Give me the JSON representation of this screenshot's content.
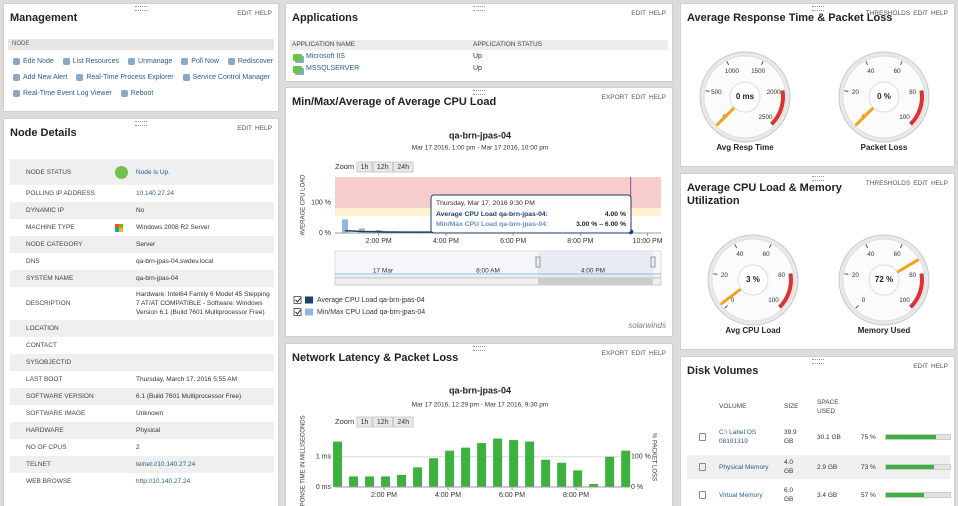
{
  "management": {
    "title": "Management",
    "actions": [
      "EDIT",
      "HELP"
    ],
    "section": "NODE",
    "links": [
      [
        "Edit Node",
        "List Resources",
        "Unmanage",
        "Poll Now",
        "Rediscover"
      ],
      [
        "Add New Alert",
        "Real-Time Process Explorer",
        "Service Control Manager"
      ],
      [
        "Real-Time Event Log Viewer",
        "Reboot"
      ]
    ]
  },
  "node_details": {
    "title": "Node Details",
    "actions": [
      "EDIT",
      "HELP"
    ],
    "rows": [
      {
        "label": "NODE STATUS",
        "value": "Node is Up.",
        "link": true,
        "icon": "status"
      },
      {
        "label": "POLLING IP ADDRESS",
        "value": "10.140.27.24",
        "link": true
      },
      {
        "label": "DYNAMIC IP",
        "value": "No"
      },
      {
        "label": "MACHINE TYPE",
        "value": "Windows 2008 R2 Server",
        "icon": "windows"
      },
      {
        "label": "NODE CATEGORY",
        "value": "Server"
      },
      {
        "label": "DNS",
        "value": "qa-brn-jpas-04.swdev.local"
      },
      {
        "label": "SYSTEM NAME",
        "value": "qa-brn-jpas-04"
      },
      {
        "label": "DESCRIPTION",
        "value": "Hardware: Intel64 Family 6 Model 45 Stepping 7 AT/AT COMPATIBLE - Software: Windows Version 6.1 (Build 7601 Multiprocessor Free)"
      },
      {
        "label": "LOCATION"
      },
      {
        "label": "CONTACT"
      },
      {
        "label": "SYSOBJECTID"
      },
      {
        "label": "LAST BOOT",
        "value": "Thursday, March 17, 2016 5:55 AM"
      },
      {
        "label": "SOFTWARE VERSION",
        "value": "6.1 (Build 7601 Multiprocessor Free)"
      },
      {
        "label": "SOFTWARE IMAGE",
        "value": "Unknown"
      },
      {
        "label": "HARDWARE",
        "value": "Physical"
      },
      {
        "label": "NO OF CPUS",
        "value": "2"
      },
      {
        "label": "TELNET",
        "value": "telnet://10.140.27.24",
        "link": true
      },
      {
        "label": "WEB BROWSE",
        "value": "http://10.140.27.24",
        "link": true
      }
    ]
  },
  "applications": {
    "title": "Applications",
    "actions": [
      "EDIT",
      "HELP"
    ],
    "columns": [
      "APPLICATION NAME",
      "APPLICATION STATUS"
    ],
    "rows": [
      [
        "Microsoft IIS",
        "Up"
      ],
      [
        "MSSQLSERVER",
        "Up"
      ]
    ]
  },
  "cpu_panel": {
    "title": "Min/Max/Average of Average CPU Load",
    "actions": [
      "EXPORT",
      "EDIT",
      "HELP"
    ],
    "chart_data": {
      "type": "line",
      "title": "qa-brn-jpas-04",
      "subtitle": "Mar 17 2016, 1:00 pm - Mar 17 2016, 10:00 pm",
      "zoom_label": "Zoom",
      "zoom": [
        "1h",
        "12h",
        "24h"
      ],
      "y_label": "AVERAGE CPU LOAD",
      "x": [
        13,
        13.5,
        14,
        14.5,
        15,
        15.5,
        16,
        16.5,
        17,
        17.5,
        18,
        18.5,
        19,
        19.5,
        20,
        20.5,
        21,
        21.5
      ],
      "series": [
        {
          "name": "Average CPU Load qa-brn-jpas-04",
          "color": "#1f3f6e",
          "values": [
            8,
            5,
            4,
            3,
            3,
            3,
            2,
            3,
            3,
            2,
            3,
            3,
            2,
            3,
            3,
            3,
            3,
            4
          ]
        },
        {
          "name": "Min/Max CPU Load qa-brn-jpas-04",
          "color": "#8fb8e0",
          "min": [
            2,
            2,
            2,
            1,
            1,
            1,
            1,
            1,
            1,
            1,
            1,
            1,
            1,
            1,
            1,
            2,
            2,
            3
          ],
          "max": [
            45,
            15,
            10,
            6,
            5,
            5,
            4,
            5,
            5,
            4,
            5,
            5,
            4,
            5,
            5,
            5,
            5,
            6
          ]
        }
      ],
      "xlim": [
        12.7,
        22.4
      ],
      "xticks": [
        {
          "value": 14,
          "label": "2:00 PM"
        },
        {
          "value": 16,
          "label": "4:00 PM"
        },
        {
          "value": 18,
          "label": "6:00 PM"
        },
        {
          "value": 20,
          "label": "8:00 PM"
        },
        {
          "value": 22,
          "label": "10:00 PM"
        }
      ],
      "ylim": [
        0,
        185
      ],
      "yticks": [
        {
          "value": 0,
          "label": "0 %"
        },
        {
          "value": 100,
          "label": "100 %"
        }
      ],
      "tooltip": {
        "title": "Thursday, Mar 17, 2016 9:30 PM",
        "lines": [
          [
            "Average CPU Load qa-brn-jpas-04:",
            "4.00 %"
          ],
          [
            "Min/Max CPU Load qa-brn-jpas-04:",
            "3.00 % – 6.00 %"
          ]
        ]
      },
      "navigator_labels": [
        "17 Mar",
        "8:00 AM",
        "4:00 PM"
      ],
      "brand": "solarwinds"
    }
  },
  "network_panel": {
    "title": "Network Latency & Packet Loss",
    "actions": [
      "EXPORT",
      "EDIT",
      "HELP"
    ],
    "chart_data": {
      "type": "bar",
      "title": "qa-brn-jpas-04",
      "subtitle": "Mar 17 2016, 12:29 pm - Mar 17 2016, 9:30 pm",
      "zoom_label": "Zoom",
      "zoom": [
        "1h",
        "12h",
        "24h"
      ],
      "y_label": "RESPONSE TIME IN MILLISECONDS",
      "y2_label": "% PACKET LOSS",
      "x": [
        12.55,
        13.05,
        13.55,
        14.05,
        14.55,
        15.05,
        15.55,
        16.05,
        16.55,
        17.05,
        17.55,
        18.05,
        18.55,
        19.05,
        19.55,
        20.05,
        20.55,
        21.05,
        21.55
      ],
      "values": [
        1.5,
        0.35,
        0.35,
        0.35,
        0.4,
        0.65,
        0.95,
        1.2,
        1.3,
        1.45,
        1.6,
        1.55,
        1.5,
        0.9,
        0.8,
        0.55,
        0.1,
        1.0,
        1.2
      ],
      "color": "#3db13d",
      "xlim": [
        12.47,
        21.56
      ],
      "xticks": [
        {
          "value": 14,
          "label": "2:00 PM"
        },
        {
          "value": 16,
          "label": "4:00 PM"
        },
        {
          "value": 18,
          "label": "6:00 PM"
        },
        {
          "value": 20,
          "label": "8:00 PM"
        }
      ],
      "ylim": [
        0,
        1.85
      ],
      "yticks": [
        {
          "value": 0,
          "label": "0 ms"
        },
        {
          "value": 1,
          "label": "1 ms"
        }
      ],
      "y2lim": [
        0,
        185
      ],
      "y2ticks": [
        {
          "value": 0,
          "label": "0 %"
        },
        {
          "value": 100,
          "label": "100 %"
        }
      ]
    }
  },
  "response_panel": {
    "title": "Average Response Time & Packet Loss",
    "actions": [
      "THRESHOLDS",
      "EDIT",
      "HELP"
    ],
    "gauges": [
      {
        "label": "Avg Resp Time",
        "value": 0,
        "value_label": "0 ms",
        "ticks": [
          0,
          500,
          1000,
          1500,
          2000,
          2500
        ]
      },
      {
        "label": "Packet Loss",
        "value": 0,
        "value_label": "0 %",
        "ticks": [
          0,
          20,
          40,
          60,
          80,
          100
        ]
      }
    ]
  },
  "cpu_memory_panel": {
    "title": "Average CPU Load & Memory Utilization",
    "actions": [
      "THRESHOLDS",
      "EDIT",
      "HELP"
    ],
    "gauges": [
      {
        "label": "Avg CPU Load",
        "value": 3,
        "value_label": "3 %",
        "ticks": [
          0,
          20,
          40,
          60,
          80,
          100
        ]
      },
      {
        "label": "Memory Used",
        "value": 72,
        "value_label": "72 %",
        "ticks": [
          0,
          20,
          40,
          60,
          80,
          100
        ]
      }
    ]
  },
  "disk_panel": {
    "title": "Disk Volumes",
    "actions": [
      "EDIT",
      "HELP"
    ],
    "columns": [
      "VOLUME",
      "SIZE",
      "SPACE USED"
    ],
    "rows": [
      {
        "volume": "C:\\ Label:OS 08191319",
        "size": "39.9 GB",
        "used": "30.1 GB",
        "percent": {
          "value": 75,
          "label": "75 %"
        }
      },
      {
        "volume": "Physical Memory",
        "size": "4.0 GB",
        "used": "2.9 GB",
        "percent": {
          "value": 73,
          "label": "73 %"
        }
      },
      {
        "volume": "Virtual Memory",
        "size": "6.0 GB",
        "used": "3.4 GB",
        "percent": {
          "value": 57,
          "label": "57 %"
        }
      }
    ]
  }
}
